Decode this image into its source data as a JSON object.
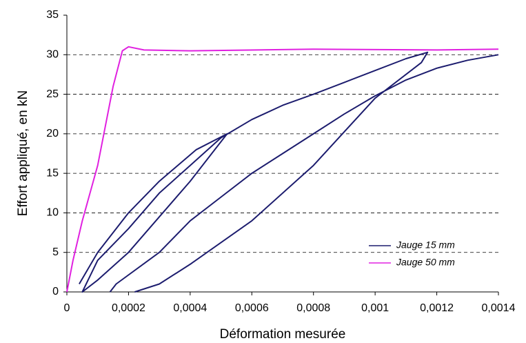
{
  "chart_data": {
    "type": "line",
    "x_label": "Déformation mesurée",
    "y_label": "Effort appliqué, en kN",
    "xlim": [
      0,
      0.0014
    ],
    "ylim": [
      0,
      35
    ],
    "xticks": [
      0,
      {
        "value": 0.0002,
        "label": "0,0002"
      },
      {
        "value": 0.0004,
        "label": "0,0004"
      },
      {
        "value": 0.0006,
        "label": "0,0006"
      },
      {
        "value": 0.0008,
        "label": "0,0008"
      },
      {
        "value": 0.001,
        "label": "0,001"
      },
      {
        "value": 0.0012,
        "label": "0,0012"
      },
      {
        "value": 0.0014,
        "label": "0,0014"
      }
    ],
    "yticks": [
      0,
      5,
      10,
      15,
      20,
      25,
      30,
      35
    ],
    "grid": true,
    "legend": "lower right",
    "series": [
      {
        "name": "Jauge 15 mm",
        "color": "#1c1c6e",
        "x": [
          4e-05,
          0.0001,
          0.0002,
          0.0003,
          0.00042,
          0.00052,
          0.00048,
          0.0004,
          0.0003,
          0.0002,
          0.0001,
          5e-05,
          0.0001,
          0.0002,
          0.0003,
          0.0004,
          0.0005,
          0.0006,
          0.0007,
          0.0008,
          0.0009,
          0.001,
          0.0011,
          0.00117,
          0.00115,
          0.001,
          0.0008,
          0.0006,
          0.0004,
          0.0003,
          0.00022,
          null,
          0.00014,
          0.00016,
          0.0003,
          0.0004,
          0.0005,
          0.0006,
          0.0007,
          0.0008,
          0.0009,
          0.001,
          0.0011,
          0.0012,
          0.0013,
          0.0014
        ],
        "values": [
          1,
          5,
          10,
          14,
          18,
          20,
          18,
          14,
          9.5,
          5,
          1.5,
          0,
          4,
          8,
          12.5,
          16,
          19.5,
          21.8,
          23.6,
          25,
          26.5,
          28,
          29.5,
          30.3,
          29,
          24.5,
          16,
          9,
          3.5,
          1,
          0,
          null,
          0,
          1,
          5,
          9,
          12,
          15,
          17.5,
          20,
          22.5,
          24.8,
          26.8,
          28.3,
          29.3,
          30
        ]
      },
      {
        "name": "Jauge 50 mm",
        "color": "#e020e0",
        "x": [
          0,
          2e-05,
          5e-05,
          0.0001,
          0.00015,
          0.00018,
          0.0002,
          0.00025,
          0.0004,
          0.0008,
          0.0012,
          0.0014
        ],
        "values": [
          0,
          4,
          9,
          16,
          26,
          30.5,
          31,
          30.6,
          30.5,
          30.7,
          30.6,
          30.7
        ]
      }
    ]
  }
}
